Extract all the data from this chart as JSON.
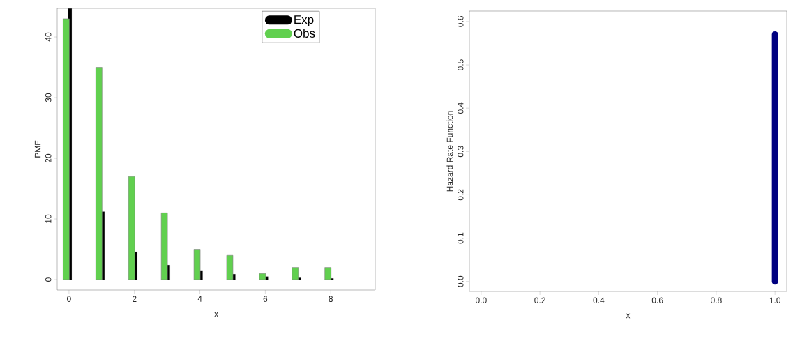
{
  "chart_data": [
    {
      "type": "bar",
      "xlabel": "x",
      "ylabel": "PMF",
      "x": [
        0,
        1,
        2,
        3,
        4,
        5,
        6,
        7,
        8
      ],
      "xlim": [
        -0.36,
        9.36
      ],
      "ylim": [
        -1.72,
        44.72
      ],
      "xticks": [
        0,
        2,
        4,
        6,
        8
      ],
      "yticks": [
        0,
        10,
        20,
        30,
        40
      ],
      "legend": "top right",
      "series": [
        {
          "name": "Exp",
          "color": "#000000",
          "values": [
            44.7,
            11.2,
            4.6,
            2.4,
            1.4,
            0.9,
            0.5,
            0.3,
            0.2
          ]
        },
        {
          "name": "Obs",
          "color": "#61d04f",
          "values": [
            43,
            35,
            17,
            11,
            5,
            4,
            1,
            2,
            2
          ]
        }
      ]
    },
    {
      "type": "line",
      "xlabel": "x",
      "ylabel": "Hazard Rate Function",
      "xlim": [
        -0.04,
        1.04
      ],
      "ylim": [
        -0.023,
        0.624
      ],
      "xticks": [
        {
          "value": 0,
          "label": "0.0"
        },
        {
          "value": 0.2,
          "label": "0.2"
        },
        {
          "value": 0.4,
          "label": "0.4"
        },
        {
          "value": 0.6,
          "label": "0.6"
        },
        {
          "value": 0.8,
          "label": "0.8"
        },
        {
          "value": 1,
          "label": "1.0"
        }
      ],
      "yticks": [
        {
          "value": 0,
          "label": "0.0"
        },
        {
          "value": 0.1,
          "label": "0.1"
        },
        {
          "value": 0.2,
          "label": "0.2"
        },
        {
          "value": 0.3,
          "label": "0.3"
        },
        {
          "value": 0.4,
          "label": "0.4"
        },
        {
          "value": 0.5,
          "label": "0.5"
        },
        {
          "value": 0.6,
          "label": "0.6"
        }
      ],
      "series": [
        {
          "color": "#000080",
          "x": [
            1,
            1
          ],
          "values": [
            0,
            0.57
          ]
        }
      ]
    }
  ]
}
